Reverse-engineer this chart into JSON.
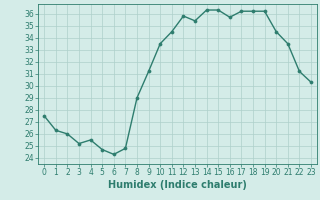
{
  "x": [
    0,
    1,
    2,
    3,
    4,
    5,
    6,
    7,
    8,
    9,
    10,
    11,
    12,
    13,
    14,
    15,
    16,
    17,
    18,
    19,
    20,
    21,
    22,
    23
  ],
  "y": [
    27.5,
    26.3,
    26.0,
    25.2,
    25.5,
    24.7,
    24.3,
    24.8,
    29.0,
    31.2,
    33.5,
    34.5,
    35.8,
    35.4,
    36.3,
    36.3,
    35.7,
    36.2,
    36.2,
    36.2,
    34.5,
    33.5,
    31.2,
    30.3
  ],
  "line_color": "#2e7d6e",
  "marker_color": "#2e7d6e",
  "bg_color": "#d4ece8",
  "grid_color": "#aed0cb",
  "xlabel": "Humidex (Indice chaleur)",
  "xlim": [
    -0.5,
    23.5
  ],
  "ylim": [
    23.5,
    36.8
  ],
  "yticks": [
    24,
    25,
    26,
    27,
    28,
    29,
    30,
    31,
    32,
    33,
    34,
    35,
    36
  ],
  "xticks": [
    0,
    1,
    2,
    3,
    4,
    5,
    6,
    7,
    8,
    9,
    10,
    11,
    12,
    13,
    14,
    15,
    16,
    17,
    18,
    19,
    20,
    21,
    22,
    23
  ],
  "tick_label_fontsize": 5.5,
  "xlabel_fontsize": 7.0,
  "line_width": 1.0,
  "marker_size": 2.2
}
